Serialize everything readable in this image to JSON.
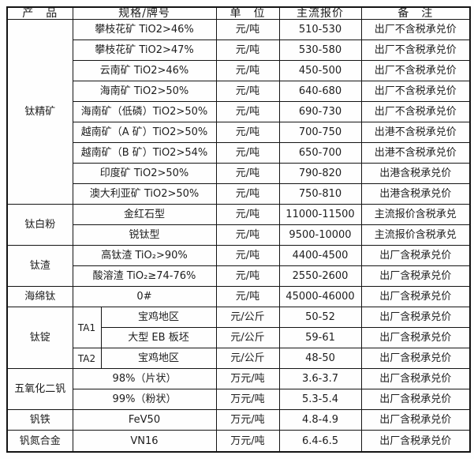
{
  "header": {
    "col_product": "产　品",
    "col_spec": "规格/牌号",
    "col_unit": "单　位",
    "col_price": "主流报价",
    "col_note": "备　注"
  },
  "colors": {
    "border": "#141414",
    "text": "#1d1d1d",
    "background": "#ffffff"
  },
  "groups": [
    {
      "product": "钛精矿",
      "rows": [
        {
          "spec": "攀枝花矿 TiO2>46%",
          "unit": "元/吨",
          "price": "510-530",
          "note": "出厂不含税承兑价"
        },
        {
          "spec": "攀枝花矿 TiO2>47%",
          "unit": "元/吨",
          "price": "530-580",
          "note": "出厂不含税承兑价"
        },
        {
          "spec": "云南矿 TiO2>46%",
          "unit": "元/吨",
          "price": "450-500",
          "note": "出厂不含税承兑价"
        },
        {
          "spec": "海南矿 TiO2>50%",
          "unit": "元/吨",
          "price": "640-680",
          "note": "出厂不含税承兑价"
        },
        {
          "spec": "海南矿（低磷）TiO2>50%",
          "unit": "元/吨",
          "price": "690-730",
          "note": "出厂不含税承兑价"
        },
        {
          "spec": "越南矿（A 矿）TiO2>50%",
          "unit": "元/吨",
          "price": "700-750",
          "note": "出港不含税承兑价"
        },
        {
          "spec": "越南矿（B 矿）TiO2>54%",
          "unit": "元/吨",
          "price": "650-700",
          "note": "出港不含税承兑价"
        },
        {
          "spec": "印度矿 TiO2>50%",
          "unit": "元/吨",
          "price": "790-820",
          "note": "出港含税承兑价"
        },
        {
          "spec": "澳大利亚矿 TiO2>50%",
          "unit": "元/吨",
          "price": "750-810",
          "note": "出港含税承兑价"
        }
      ]
    },
    {
      "product": "钛白粉",
      "rows": [
        {
          "spec": "金红石型",
          "unit": "元/吨",
          "price": "11000-11500",
          "note": "主流报价含税承兑"
        },
        {
          "spec": "锐钛型",
          "unit": "元/吨",
          "price": "9500-10000",
          "note": "主流报价含税承兑"
        }
      ]
    },
    {
      "product": "钛渣",
      "rows": [
        {
          "spec": "高钛渣 TiO₂>90%",
          "unit": "元/吨",
          "price": "4400-4500",
          "note": "出厂含税承兑价"
        },
        {
          "spec": "酸溶渣 TiO₂≥74-76%",
          "unit": "元/吨",
          "price": "2550-2600",
          "note": "出厂含税承兑价"
        }
      ]
    },
    {
      "product": "海绵钛",
      "rows": [
        {
          "spec": "0#",
          "unit": "元/吨",
          "price": "45000-46000",
          "note": "出厂含税承兑价"
        }
      ]
    },
    {
      "product": "钛锭",
      "rows": [
        {
          "grade": "TA1",
          "grade_rows": 2,
          "spec": "宝鸡地区",
          "unit": "元/公斤",
          "price": "50-52",
          "note": "出厂含税承兑价"
        },
        {
          "spec": "大型 EB 板坯",
          "unit": "元/公斤",
          "price": "59-61",
          "note": "出厂含税承兑价"
        },
        {
          "grade": "TA2",
          "grade_rows": 1,
          "spec": "宝鸡地区",
          "unit": "元/公斤",
          "price": "48-50",
          "note": "出厂含税承兑价"
        }
      ]
    },
    {
      "product": "五氧化二钒",
      "rows": [
        {
          "spec": "98%（片状）",
          "unit": "万元/吨",
          "price": "3.6-3.7",
          "note": "出厂含税承兑价"
        },
        {
          "spec": "99%（粉状）",
          "unit": "万元/吨",
          "price": "5.3-5.4",
          "note": "出厂含税承兑价"
        }
      ]
    },
    {
      "product": "钒铁",
      "rows": [
        {
          "spec": "FeV50",
          "unit": "万元/吨",
          "price": "4.8-4.9",
          "note": "出厂含税承兑价"
        }
      ]
    },
    {
      "product": "钒氮合金",
      "rows": [
        {
          "spec": "VN16",
          "unit": "万元/吨",
          "price": "6.4-6.5",
          "note": "出厂含税承兑价"
        }
      ]
    }
  ]
}
